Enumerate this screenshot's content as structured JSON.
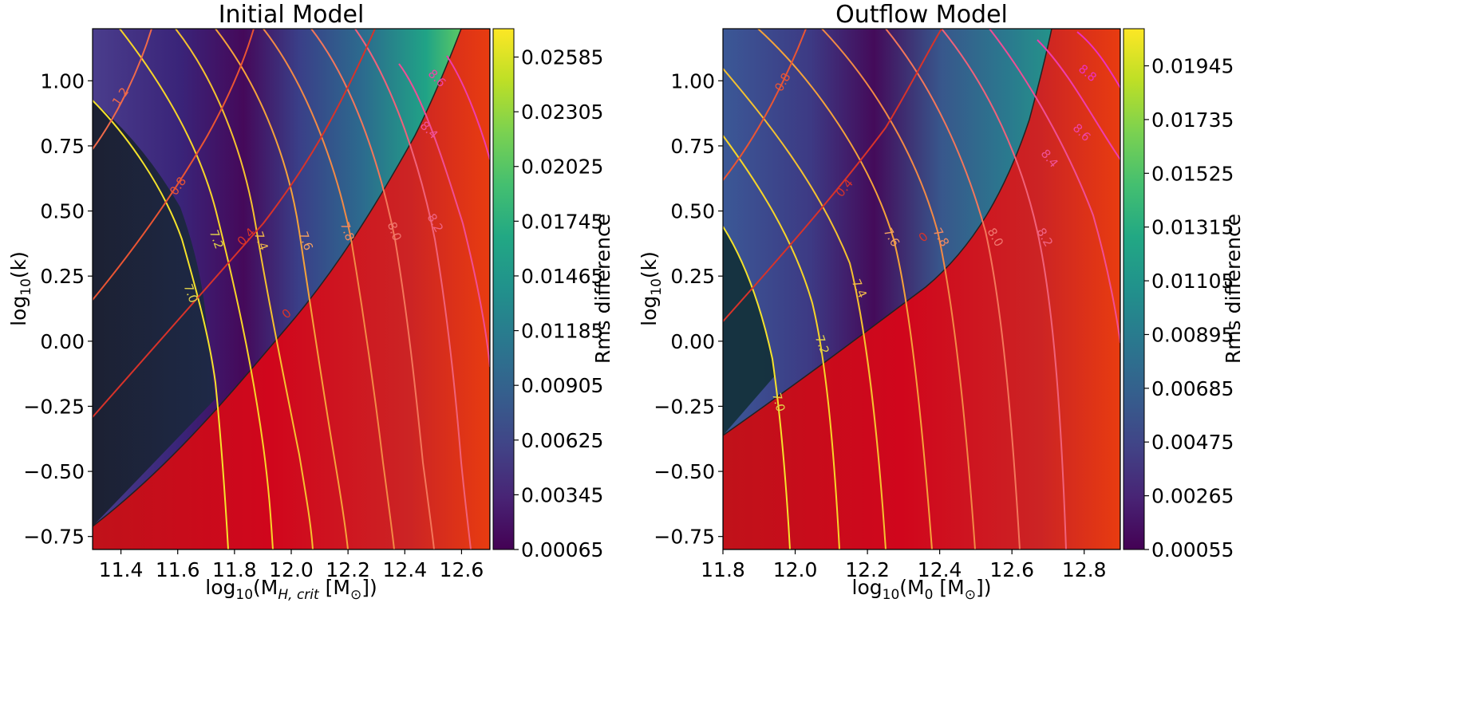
{
  "chart_data": [
    {
      "type": "heatmap",
      "title": "Initial Model",
      "xlabel": {
        "pre": "log",
        "sub": "10",
        "mid": "(M",
        "sub2": "H, crit",
        "post": " [M",
        "sun_sub": "⊙",
        "end": "])"
      },
      "ylabel": {
        "pre": "log",
        "sub": "10",
        "post": "(k)"
      },
      "xlim": [
        11.3,
        12.7
      ],
      "ylim": [
        -0.8,
        1.2
      ],
      "xticks": [
        "11.4",
        "11.6",
        "11.8",
        "12.0",
        "12.2",
        "12.4",
        "12.6"
      ],
      "yticks": [
        "−0.75",
        "−0.50",
        "−0.25",
        "0.00",
        "0.25",
        "0.50",
        "0.75",
        "1.00"
      ],
      "colorbar": {
        "label": "Rms difference",
        "colormap": "viridis",
        "range": [
          0.00065,
          0.0273
        ],
        "ticks": [
          "0.00065",
          "0.00345",
          "0.00625",
          "0.00905",
          "0.01185",
          "0.01465",
          "0.01745",
          "0.02025",
          "0.02305",
          "0.02585"
        ]
      },
      "mass_contour_levels": [
        "7.0",
        "7.2",
        "7.4",
        "7.6",
        "7.8",
        "8.0",
        "8.2",
        "8.4",
        "8.6"
      ],
      "diagonal_contour_levels": [
        "1.2",
        "0.8",
        "0.4",
        "0"
      ],
      "excluded_region_color": "#cc0a1e"
    },
    {
      "type": "heatmap",
      "title": "Outflow Model",
      "xlabel": {
        "pre": "log",
        "sub": "10",
        "mid": "(M",
        "sub2": "0",
        "post": " [M",
        "sun_sub": "⊙",
        "end": "])"
      },
      "ylabel": {
        "pre": "log",
        "sub": "10",
        "post": "(k)"
      },
      "xlim": [
        11.8,
        12.9
      ],
      "ylim": [
        -0.8,
        1.2
      ],
      "xticks": [
        "11.8",
        "12.0",
        "12.2",
        "12.4",
        "12.6",
        "12.8"
      ],
      "yticks": [
        "−0.75",
        "−0.50",
        "−0.25",
        "0.00",
        "0.25",
        "0.50",
        "0.75",
        "1.00"
      ],
      "colorbar": {
        "label": "Rms difference",
        "colormap": "viridis",
        "range": [
          0.00055,
          0.0209
        ],
        "ticks": [
          "0.00055",
          "0.00265",
          "0.00475",
          "0.00685",
          "0.00895",
          "0.01105",
          "0.01315",
          "0.01525",
          "0.01735",
          "0.01945"
        ]
      },
      "mass_contour_levels": [
        "7.0",
        "7.2",
        "7.4",
        "7.6",
        "7.8",
        "8.0",
        "8.2",
        "8.4",
        "8.6",
        "8.8"
      ],
      "diagonal_contour_levels": [
        "0.8",
        "0.4",
        "0"
      ],
      "excluded_region_color": "#cc0a1e"
    }
  ]
}
